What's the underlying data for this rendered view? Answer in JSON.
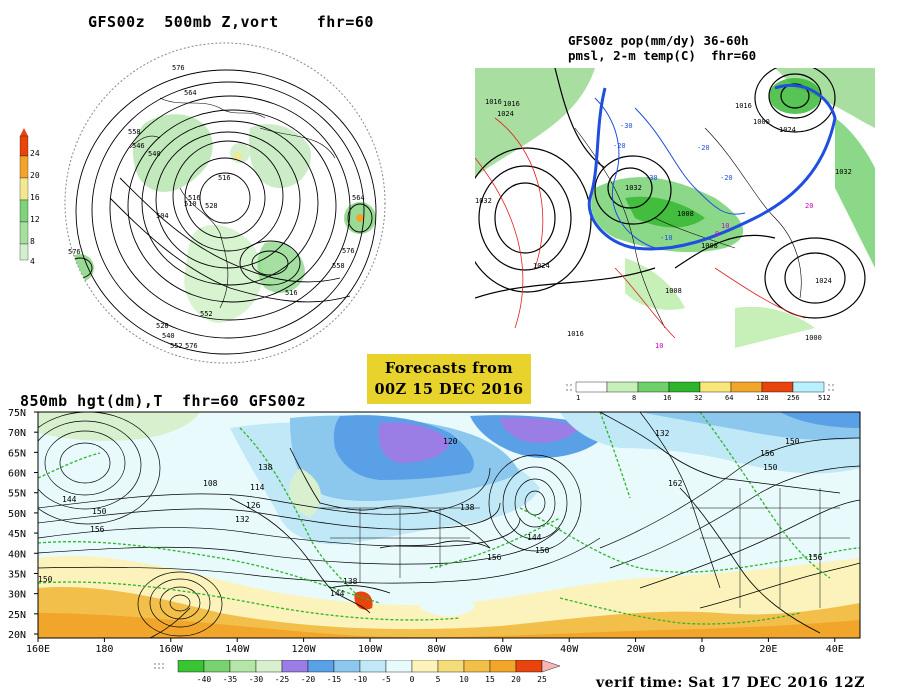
{
  "panel_polar": {
    "title": "GFS00z  500mb Z,vort    fhr=60",
    "colorbar_ticks": [
      "24",
      "20",
      "16",
      "12",
      "8",
      "4"
    ],
    "colorbar_colors": [
      "#e8440e",
      "#f2a52b",
      "#f2e891",
      "#7fd17a",
      "#a8dfa0",
      "#d4efcc"
    ],
    "contour_labels": [
      "576",
      "564",
      "558",
      "546",
      "540",
      "516",
      "510",
      "516",
      "504",
      "528",
      "576",
      "564",
      "576",
      "558",
      "516",
      "552",
      "528",
      "540",
      "552",
      "576"
    ]
  },
  "panel_precip": {
    "title_line1": "GFS00z pop(mm/dy) 36-60h",
    "title_line2": "pmsl, 2-m temp(C)  fhr=60",
    "isobar_labels": [
      "1016",
      "1024",
      "1032",
      "1024",
      "1032",
      "1016",
      "1008",
      "1008",
      "1016",
      "1000",
      "1024",
      "1024",
      "1032",
      "1008",
      "1000",
      "1016"
    ],
    "temp_labels": [
      "-30",
      "-20",
      "-30",
      "-20",
      "-20",
      "-10",
      "0",
      "10",
      "20",
      "10"
    ]
  },
  "forecast_box": {
    "line1": "Forecasts from",
    "line2": "00Z 15 DEC 2016"
  },
  "precip_legend": {
    "ticks": [
      "1",
      "8",
      "16",
      "32",
      "64",
      "128",
      "256",
      "512"
    ],
    "colors": [
      "#ffffff",
      "#c6f0b8",
      "#6ed06a",
      "#2fb52c",
      "#f8e67a",
      "#f2a52b",
      "#e8440e",
      "#b8f0ff"
    ]
  },
  "panel_850": {
    "title": "850mb hgt(dm),T  fhr=60 GFS00z",
    "lat_labels": [
      "75N",
      "70N",
      "65N",
      "60N",
      "55N",
      "50N",
      "45N",
      "40N",
      "35N",
      "30N",
      "25N",
      "20N"
    ],
    "lon_labels": [
      "160E",
      "180",
      "160W",
      "140W",
      "120W",
      "100W",
      "80W",
      "60W",
      "40W",
      "20W",
      "0",
      "20E",
      "40E"
    ],
    "height_labels": [
      "120",
      "132",
      "138",
      "144",
      "150",
      "156",
      "108",
      "114",
      "126",
      "132",
      "138",
      "144",
      "150",
      "150",
      "156",
      "162",
      "156",
      "150",
      "138",
      "144",
      "150",
      "156"
    ]
  },
  "temp_legend": {
    "ticks": [
      "-40",
      "-35",
      "-30",
      "-25",
      "-20",
      "-15",
      "-10",
      "-5",
      "0",
      "5",
      "10",
      "15",
      "20",
      "25"
    ],
    "colors": [
      "#39c433",
      "#78d26f",
      "#b4e6a7",
      "#d8f0cd",
      "#9a7ee6",
      "#5aa0e6",
      "#8cc8ee",
      "#c0e8f6",
      "#e8fafc",
      "#fbf3bb",
      "#f4dc7a",
      "#f2c04a",
      "#f2a52b",
      "#e8440e",
      "#f7b5b5"
    ]
  },
  "verif_time": "verif time: Sat 17 DEC 2016 12Z"
}
